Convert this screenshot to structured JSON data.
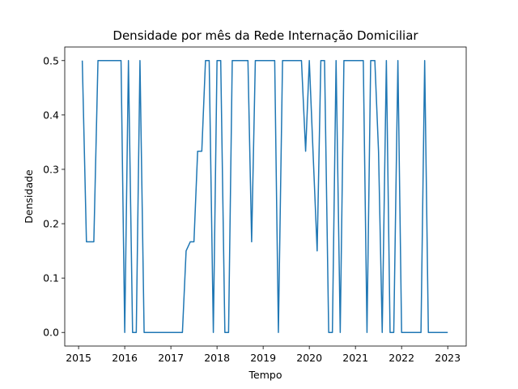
{
  "chart_data": {
    "type": "line",
    "title": "Densidade por mês da Rede Internação Domiciliar",
    "xlabel": "Tempo",
    "ylabel": "Densidade",
    "xlim": [
      2014.7,
      2023.4
    ],
    "ylim": [
      -0.025,
      0.525
    ],
    "xticks": [
      2015,
      2016,
      2017,
      2018,
      2019,
      2020,
      2021,
      2022,
      2023
    ],
    "yticks": [
      0.0,
      0.1,
      0.2,
      0.3,
      0.4,
      0.5
    ],
    "ytick_labels": [
      "0.0",
      "0.1",
      "0.2",
      "0.3",
      "0.4",
      "0.5"
    ],
    "grid": false,
    "legend": "none",
    "line_color": "#1f77b4",
    "series": [
      {
        "x": [
          2015.08,
          2015.17,
          2015.25,
          2015.33,
          2015.42,
          2015.5,
          2015.58,
          2015.67,
          2015.75,
          2015.83,
          2015.92,
          2016.0,
          2016.08,
          2016.17,
          2016.25,
          2016.33,
          2016.42,
          2016.5,
          2016.58,
          2016.67,
          2016.75,
          2016.83,
          2016.92,
          2017.0,
          2017.08,
          2017.17,
          2017.25,
          2017.33,
          2017.42,
          2017.5,
          2017.58,
          2017.67,
          2017.75,
          2017.83,
          2017.92,
          2018.0,
          2018.08,
          2018.17,
          2018.25,
          2018.33,
          2018.42,
          2018.5,
          2018.58,
          2018.67,
          2018.75,
          2018.83,
          2018.92,
          2019.0,
          2019.08,
          2019.17,
          2019.25,
          2019.33,
          2019.42,
          2019.5,
          2019.58,
          2019.67,
          2019.75,
          2019.83,
          2019.92,
          2020.0,
          2020.08,
          2020.17,
          2020.25,
          2020.33,
          2020.42,
          2020.5,
          2020.58,
          2020.67,
          2020.75,
          2020.83,
          2020.92,
          2021.0,
          2021.08,
          2021.17,
          2021.25,
          2021.33,
          2021.42,
          2021.5,
          2021.58,
          2021.67,
          2021.75,
          2021.83,
          2021.92,
          2022.0,
          2022.08,
          2022.17,
          2022.25,
          2022.33,
          2022.42,
          2022.5,
          2022.58,
          2022.67,
          2022.75,
          2022.83,
          2022.92,
          2023.0
        ],
        "y": [
          0.5,
          0.1667,
          0.1667,
          0.1667,
          0.5,
          0.5,
          0.5,
          0.5,
          0.5,
          0.5,
          0.5,
          0.0,
          0.5,
          0.0,
          0.0,
          0.5,
          0.0,
          0.0,
          0.0,
          0.0,
          0.0,
          0.0,
          0.0,
          0.0,
          0.0,
          0.0,
          0.0,
          0.15,
          0.1667,
          0.1667,
          0.3333,
          0.3333,
          0.5,
          0.5,
          0.0,
          0.5,
          0.5,
          0.0,
          0.0,
          0.5,
          0.5,
          0.5,
          0.5,
          0.5,
          0.1667,
          0.5,
          0.5,
          0.5,
          0.5,
          0.5,
          0.5,
          0.0,
          0.5,
          0.5,
          0.5,
          0.5,
          0.5,
          0.5,
          0.3333,
          0.5,
          0.3333,
          0.15,
          0.5,
          0.5,
          0.0,
          0.0,
          0.5,
          0.0,
          0.5,
          0.5,
          0.5,
          0.5,
          0.5,
          0.5,
          0.0,
          0.5,
          0.5,
          0.3333,
          0.0,
          0.5,
          0.0,
          0.0,
          0.5,
          0.0,
          0.0,
          0.0,
          0.0,
          0.0,
          0.0,
          0.5,
          0.0,
          0.0,
          0.0,
          0.0,
          0.0,
          0.0
        ]
      }
    ]
  }
}
